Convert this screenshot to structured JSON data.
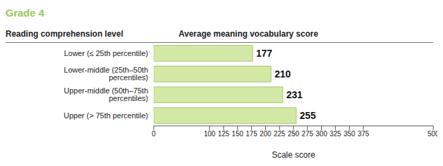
{
  "chart_data": {
    "type": "bar",
    "orientation": "horizontal",
    "title": "Grade 4",
    "y_label": "Reading comprehension level",
    "value_title": "Average meaning vocabulary score",
    "x_label": "Scale score",
    "categories": [
      "Lower (≤ 25th percentile)",
      "Lower-middle (25th–50th percentiles)",
      "Upper-middle (50th–75th percentiles)",
      "Upper (> 75th percentile)"
    ],
    "values": [
      177,
      210,
      231,
      255
    ],
    "color": "#d2e8a4",
    "xlim": [
      0,
      500
    ],
    "xticks": [
      0,
      100,
      125,
      150,
      175,
      200,
      225,
      250,
      275,
      300,
      325,
      350,
      375,
      500
    ],
    "grid": false,
    "data_labels": true
  }
}
